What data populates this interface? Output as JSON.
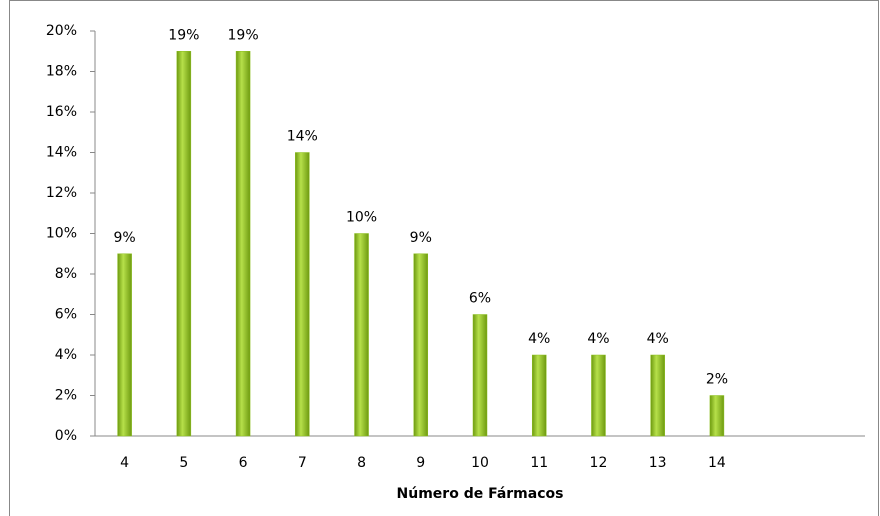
{
  "chart_data": {
    "type": "bar",
    "x_label": "Número de Fármacos",
    "categories": [
      "4",
      "5",
      "6",
      "7",
      "8",
      "9",
      "10",
      "11",
      "12",
      "13",
      "14"
    ],
    "values": [
      9,
      19,
      19,
      14,
      10,
      9,
      6,
      4,
      4,
      4,
      2
    ],
    "value_labels": [
      "9%",
      "19%",
      "19%",
      "14%",
      "10%",
      "9%",
      "6%",
      "4%",
      "4%",
      "4%",
      "2%"
    ],
    "color": "#8cbf1e",
    "ylim": [
      0,
      20
    ],
    "yticks": [
      {
        "value": 0,
        "label": "0%"
      },
      {
        "value": 2,
        "label": "2%"
      },
      {
        "value": 4,
        "label": "4%"
      },
      {
        "value": 6,
        "label": "6%"
      },
      {
        "value": 8,
        "label": "8%"
      },
      {
        "value": 10,
        "label": "10%"
      },
      {
        "value": 12,
        "label": "12%"
      },
      {
        "value": 14,
        "label": "14%"
      },
      {
        "value": 16,
        "label": "16%"
      },
      {
        "value": 18,
        "label": "18%"
      },
      {
        "value": 20,
        "label": "20%"
      }
    ],
    "grid": false
  }
}
